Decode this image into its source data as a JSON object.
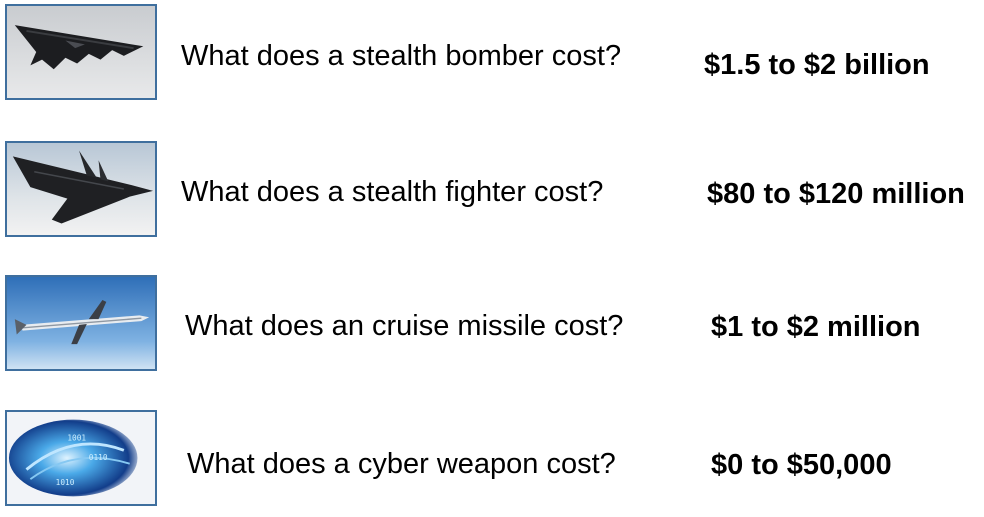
{
  "rows": [
    {
      "image_icon": "stealth-bomber-icon",
      "question": "What does a stealth bomber cost?",
      "answer": "$1.5 to $2 billion"
    },
    {
      "image_icon": "stealth-fighter-icon",
      "question": "What does a stealth fighter cost?",
      "answer": "$80 to $120 million"
    },
    {
      "image_icon": "cruise-missile-icon",
      "question": "What does an cruise missile cost?",
      "answer": "$1 to $2 million"
    },
    {
      "image_icon": "cyber-weapon-icon",
      "question": "What does a cyber weapon cost?",
      "answer": "$0 to $50,000"
    }
  ],
  "colors": {
    "thumbnail_border": "#3f6f9e",
    "text": "#000000",
    "background": "#ffffff"
  }
}
